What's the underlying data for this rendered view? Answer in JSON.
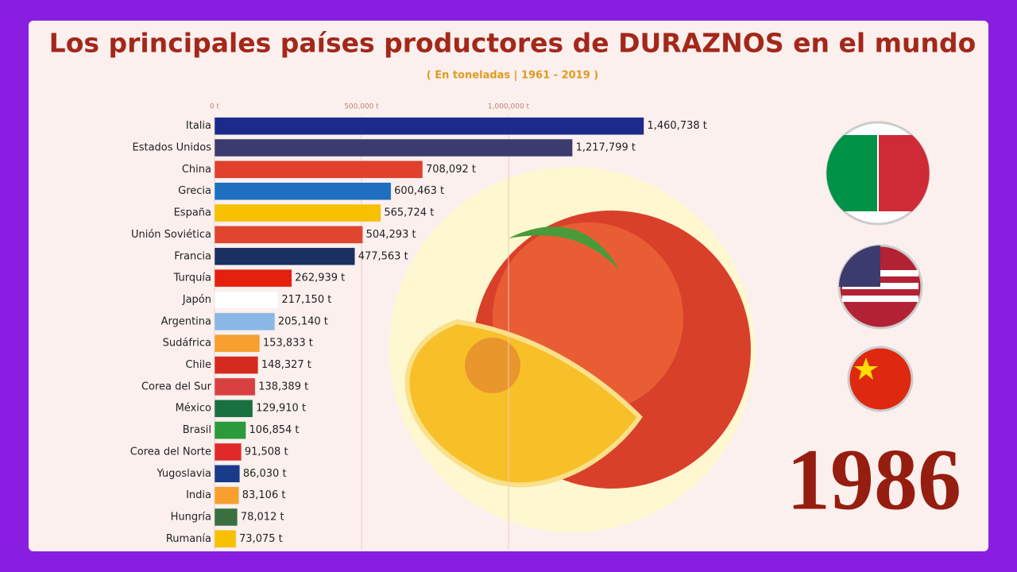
{
  "chart_data": {
    "type": "bar",
    "orientation": "horizontal",
    "title": "Los principales países productores de DURAZNOS en el mundo",
    "subtitle": "( En toneladas | 1961 - 2019 )",
    "year": "1986",
    "categories": [
      "Italia",
      "Estados Unidos",
      "China",
      "Grecia",
      "España",
      "Unión Soviética",
      "Francia",
      "Turquía",
      "Japón",
      "Argentina",
      "Sudáfrica",
      "Chile",
      "Corea del Sur",
      "México",
      "Brasil",
      "Corea del Norte",
      "Yugoslavia",
      "India",
      "Hungría",
      "Rumanía"
    ],
    "values": [
      1460738,
      1217799,
      708092,
      600463,
      565724,
      504293,
      477563,
      262939,
      217150,
      205140,
      153833,
      148327,
      138389,
      129910,
      106854,
      91508,
      86030,
      83106,
      78012,
      73075
    ],
    "value_labels": [
      "1,460,738 t",
      "1,217,799 t",
      "708,092 t",
      "600,463 t",
      "565,724 t",
      "504,293 t",
      "477,563 t",
      "262,939 t",
      "217,150 t",
      "205,140 t",
      "153,833 t",
      "148,327 t",
      "138,389 t",
      "129,910 t",
      "106,854 t",
      "91,508 t",
      "86,030 t",
      "83,106 t",
      "78,012 t",
      "73,075 t"
    ],
    "colors": [
      "#1c2a8c",
      "#3c3b6e",
      "#e0402c",
      "#1e6fc0",
      "#f7c000",
      "#e0452e",
      "#1a3060",
      "#e4200e",
      "#ffffff",
      "#8ab8e6",
      "#f7a030",
      "#d52b1e",
      "#d94040",
      "#1a7040",
      "#2a9a3a",
      "#e02a2a",
      "#1a3a8a",
      "#f7a030",
      "#3a7040",
      "#f7c000"
    ],
    "xlim": [
      0,
      1500000
    ],
    "xticks": [
      {
        "value": 0,
        "label": "0 t"
      },
      {
        "value": 500000,
        "label": "500,000 t"
      },
      {
        "value": 1000000,
        "label": "1,000,000 t"
      }
    ],
    "grid": true
  }
}
